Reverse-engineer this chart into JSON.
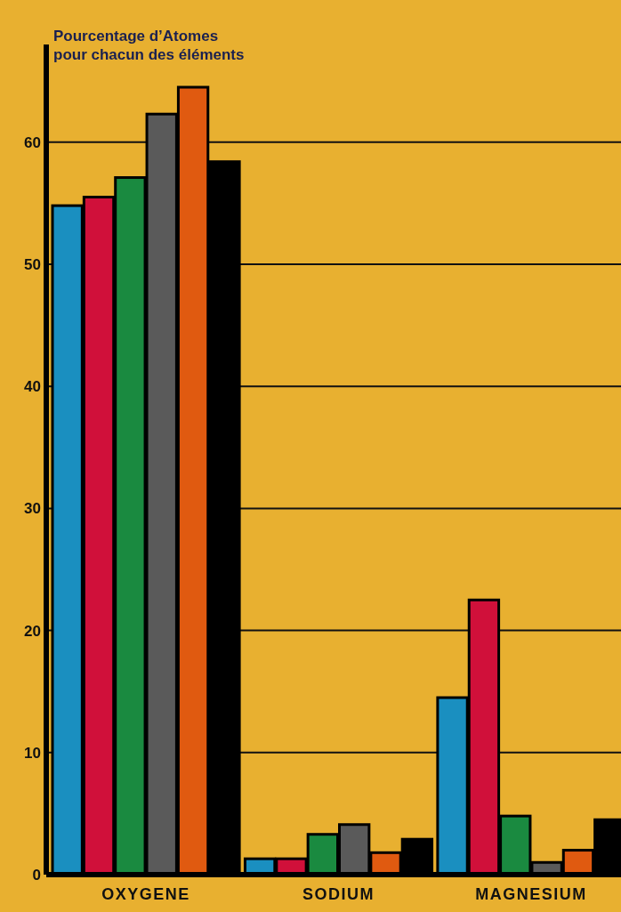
{
  "chart_data": {
    "type": "bar",
    "title": "Pourcentage d’Atomes\npour chacun des éléments",
    "categories": [
      "OXYGENE",
      "SODIUM",
      "MAGNESIUM"
    ],
    "series": [
      {
        "color": "#1a8fc0",
        "values": [
          54.8,
          1.3,
          14.5
        ]
      },
      {
        "color": "#d0103a",
        "values": [
          55.5,
          1.3,
          22.5
        ]
      },
      {
        "color": "#1a8a40",
        "values": [
          57.1,
          3.3,
          4.8
        ]
      },
      {
        "color": "#5a5a5a",
        "values": [
          62.3,
          4.1,
          1.0
        ]
      },
      {
        "color": "#e05a10",
        "values": [
          64.5,
          1.8,
          2.0
        ]
      },
      {
        "color": "#000000",
        "values": [
          58.4,
          2.9,
          4.5
        ]
      }
    ],
    "ylim": [
      0,
      68
    ],
    "yticks": [
      0,
      10,
      20,
      30,
      40,
      50,
      60
    ],
    "grid": "y"
  }
}
